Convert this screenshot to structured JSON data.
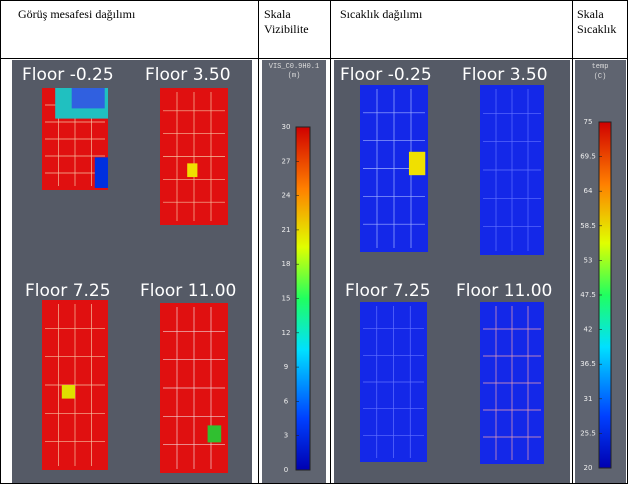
{
  "table": {
    "headers": [
      "Görüş mesafesi dağılımı",
      "Skala Vizibilite",
      "Sıcaklık dağılımı",
      "Skala Sıcaklık"
    ],
    "visibility_panels": [
      "Floor -0.25",
      "Floor 3.50",
      "Floor 7.25",
      "Floor 11.00"
    ],
    "temperature_panels": [
      "Floor -0.25",
      "Floor 3.50",
      "Floor 7.25",
      "Floor 11.00"
    ],
    "visibility_scale": {
      "title": "VIS_C0.9H0.1",
      "unit": "(m)",
      "ticks": [
        30,
        27,
        24,
        21,
        18,
        15,
        12,
        9,
        6,
        3,
        0
      ]
    },
    "temperature_scale": {
      "title": "temp",
      "unit": "(C)",
      "ticks": [
        75,
        69.5,
        64,
        58.5,
        53,
        47.5,
        42,
        36.5,
        31,
        25.5,
        20
      ]
    }
  }
}
